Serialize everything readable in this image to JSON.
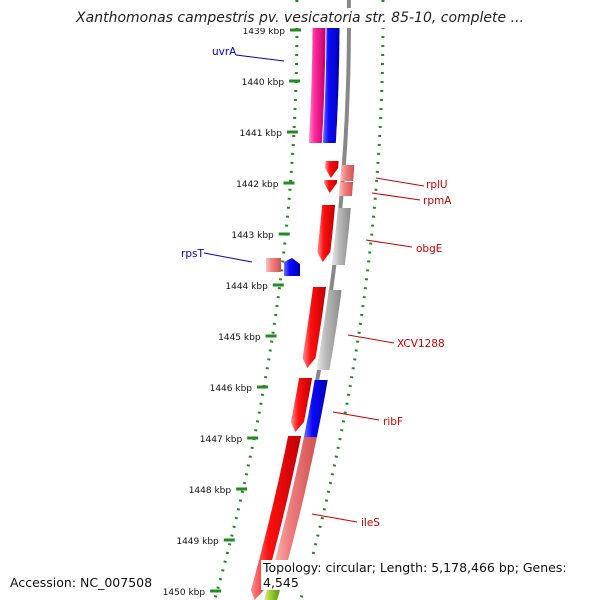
{
  "title": "Xanthomonas campestris pv. vesicatoria str. 85-10, complete ...",
  "footer": {
    "accession": "Accession: NC_007508",
    "topology": "Topology: circular; Length: 5,178,466 bp; Genes: 4,545"
  },
  "ticks": [
    "1439 kbp",
    "1440 kbp",
    "1441 kbp",
    "1442 kbp",
    "1443 kbp",
    "1444 kbp",
    "1445 kbp",
    "1446 kbp",
    "1447 kbp",
    "1448 kbp",
    "1449 kbp",
    "1450 kbp"
  ],
  "labels": [
    {
      "text": "uvrA",
      "color": "#0000cc"
    },
    {
      "text": "rplU",
      "color": "#cc0000"
    },
    {
      "text": "rpmA",
      "color": "#cc0000"
    },
    {
      "text": "obgE",
      "color": "#cc0000"
    },
    {
      "text": "rpsT",
      "color": "#0000cc"
    },
    {
      "text": "XCV1288",
      "color": "#cc0000"
    },
    {
      "text": "ribF",
      "color": "#cc0000"
    },
    {
      "text": "ileS",
      "color": "#cc0000"
    }
  ],
  "colors": {
    "gene_red": "#ee0000",
    "gene_blue": "#0000ee",
    "gene_magenta": "#ee1188",
    "gene_pink": "#f07070",
    "gene_gray": "#a8a8a8",
    "gene_green": "#88cc22",
    "backbone": "#888888",
    "dotted_guide": "#228b22"
  }
}
